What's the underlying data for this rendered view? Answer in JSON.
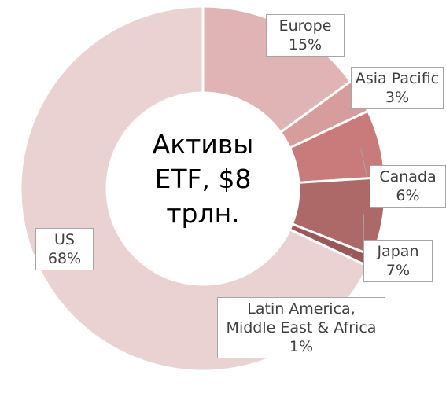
{
  "chart_data": {
    "type": "pie",
    "title": "Активы ETF, $8 трлн.",
    "categories": [
      "Europe",
      "Asia Pacific",
      "Canada",
      "Japan",
      "Latin America, Middle East & Africa",
      "US"
    ],
    "values": [
      15,
      3,
      6,
      7,
      1,
      68
    ],
    "value_labels": [
      "15%",
      "3%",
      "6%",
      "7%",
      "1%",
      "68%"
    ],
    "colors": [
      "#e0b4b4",
      "#d79c9c",
      "#c97b7b",
      "#ad6868",
      "#9a5858",
      "#ebd2d2"
    ]
  }
}
